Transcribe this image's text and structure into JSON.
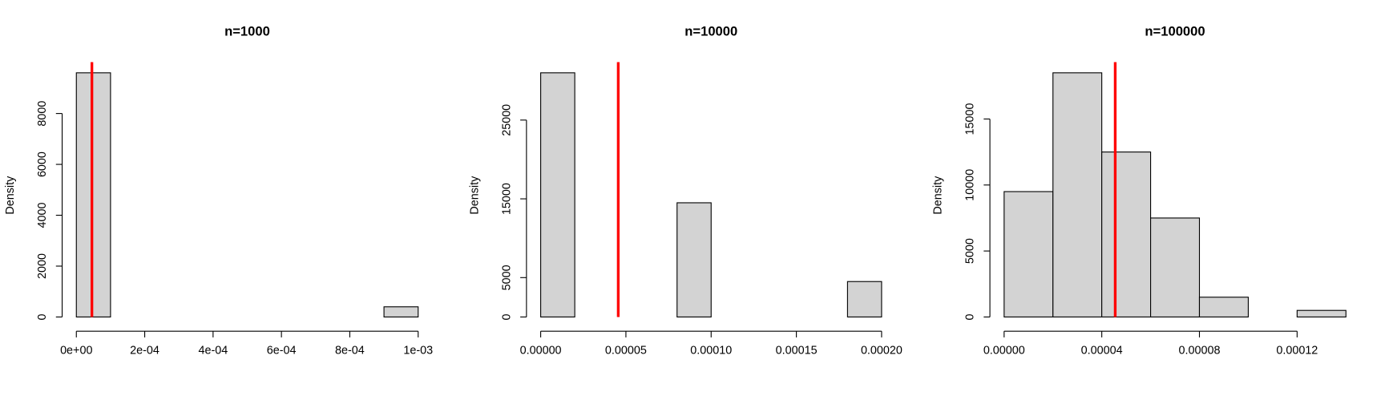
{
  "chart_data": [
    {
      "type": "histogram",
      "title": "n=1000",
      "ylabel": "Density",
      "bins": [
        0,
        0.0001,
        0.0002,
        0.0003,
        0.0004,
        0.0005,
        0.0006,
        0.0007,
        0.0008,
        0.0009,
        0.001
      ],
      "values": [
        9600,
        0,
        0,
        0,
        0,
        0,
        0,
        0,
        0,
        400
      ],
      "color": "#d3d3d3",
      "xlim": [
        0,
        0.001
      ],
      "xticks": [
        {
          "value": 0,
          "label": "0e+00"
        },
        {
          "value": 0.0002,
          "label": "2e-04"
        },
        {
          "value": 0.0004,
          "label": "4e-04"
        },
        {
          "value": 0.0006,
          "label": "6e-04"
        },
        {
          "value": 0.0008,
          "label": "8e-04"
        },
        {
          "value": 0.001,
          "label": "1e-03"
        }
      ],
      "ylim": [
        0,
        9600
      ],
      "yticks": [
        0,
        2000,
        4000,
        6000,
        8000
      ],
      "vline": {
        "value": 4.55e-05,
        "color": "#ff0000"
      }
    },
    {
      "type": "histogram",
      "title": "n=10000",
      "ylabel": "Density",
      "bins": [
        0,
        2e-05,
        4e-05,
        6e-05,
        8e-05,
        0.0001,
        0.00012,
        0.00014,
        0.00016,
        0.00018,
        0.0002
      ],
      "values": [
        31000,
        0,
        0,
        0,
        14500,
        0,
        0,
        0,
        0,
        4500
      ],
      "color": "#d3d3d3",
      "xlim": [
        0,
        0.0002
      ],
      "xticks": [
        {
          "value": 0,
          "label": "0.00000"
        },
        {
          "value": 5e-05,
          "label": "0.00005"
        },
        {
          "value": 0.0001,
          "label": "0.00010"
        },
        {
          "value": 0.00015,
          "label": "0.00015"
        },
        {
          "value": 0.0002,
          "label": "0.00020"
        }
      ],
      "ylim": [
        0,
        31000
      ],
      "yticks": [
        0,
        5000,
        15000,
        25000
      ],
      "vline": {
        "value": 4.55e-05,
        "color": "#ff0000"
      }
    },
    {
      "type": "histogram",
      "title": "n=100000",
      "ylabel": "Density",
      "bins": [
        0,
        2e-05,
        4e-05,
        6e-05,
        8e-05,
        0.0001,
        0.00012,
        0.00014
      ],
      "values": [
        9500,
        18500,
        12500,
        7500,
        1500,
        0,
        500
      ],
      "color": "#d3d3d3",
      "xlim": [
        0,
        0.00014
      ],
      "xticks": [
        {
          "value": 0,
          "label": "0.00000"
        },
        {
          "value": 4e-05,
          "label": "0.00004"
        },
        {
          "value": 8e-05,
          "label": "0.00008"
        },
        {
          "value": 0.00012,
          "label": "0.00012"
        }
      ],
      "ylim": [
        0,
        18500
      ],
      "yticks": [
        0,
        5000,
        10000,
        15000
      ],
      "vline": {
        "value": 4.55e-05,
        "color": "#ff0000"
      }
    }
  ]
}
